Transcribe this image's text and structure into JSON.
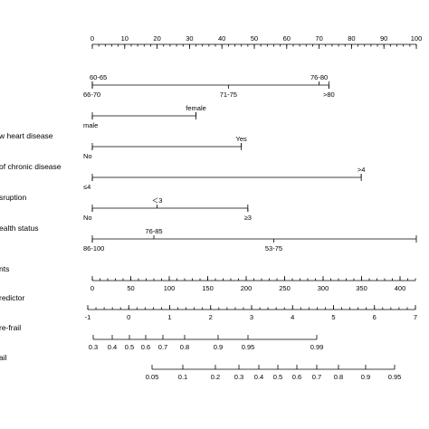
{
  "chart_data": {
    "type": "nomogram",
    "rows": [
      {
        "label": "",
        "kind": "scale",
        "domain": [
          0,
          100
        ],
        "major": [
          0,
          10,
          20,
          30,
          40,
          50,
          60,
          70,
          80,
          90,
          100
        ],
        "labels": [
          {
            "v": 0,
            "t": "0"
          },
          {
            "v": 10,
            "t": "10"
          },
          {
            "v": 20,
            "t": "20"
          },
          {
            "v": 30,
            "t": "30"
          },
          {
            "v": 40,
            "t": "40"
          },
          {
            "v": 50,
            "t": "50"
          },
          {
            "v": 60,
            "t": "60"
          },
          {
            "v": 70,
            "t": "70"
          },
          {
            "v": 80,
            "t": "80"
          },
          {
            "v": 90,
            "t": "90"
          },
          {
            "v": 100,
            "t": "100"
          }
        ],
        "minor_step": 2
      },
      {
        "label": "",
        "kind": "categorical",
        "range": [
          0,
          73
        ],
        "above": [
          {
            "v": 0,
            "t": "60-65"
          },
          {
            "v": 70,
            "t": "76-80"
          }
        ],
        "below": [
          {
            "v": 0,
            "t": "66-70"
          },
          {
            "v": 42,
            "t": "71-75"
          },
          {
            "v": 73,
            "t": ">80"
          }
        ]
      },
      {
        "label": "",
        "kind": "categorical",
        "range": [
          0,
          32
        ],
        "above": [
          {
            "v": 32,
            "t": "female"
          }
        ],
        "below": [
          {
            "v": 0,
            "t": "male"
          }
        ]
      },
      {
        "label": "w heart disease",
        "kind": "categorical",
        "range": [
          0,
          46
        ],
        "above": [
          {
            "v": 46,
            "t": "Yes"
          }
        ],
        "below": [
          {
            "v": 0,
            "t": "No"
          }
        ]
      },
      {
        "label": "of chronic disease",
        "kind": "categorical",
        "range": [
          0,
          83
        ],
        "above": [
          {
            "v": 83,
            "t": ">4"
          }
        ],
        "below": [
          {
            "v": 0,
            "t": "≤4"
          }
        ]
      },
      {
        "label": "sruption",
        "kind": "categorical",
        "range": [
          0,
          48
        ],
        "above": [
          {
            "v": 20,
            "t": "＜3"
          }
        ],
        "below": [
          {
            "v": 0,
            "t": "No"
          },
          {
            "v": 48,
            "t": "≥3"
          }
        ]
      },
      {
        "label": "ealth status",
        "kind": "categorical",
        "range": [
          0,
          100
        ],
        "above": [
          {
            "v": 19,
            "t": "76-85"
          }
        ],
        "below": [
          {
            "v": 0,
            "t": "86-100"
          },
          {
            "v": 56,
            "t": "53-75"
          }
        ]
      },
      {
        "label": "nts",
        "kind": "scale",
        "domain": [
          0,
          420
        ],
        "major": [
          0,
          50,
          100,
          150,
          200,
          250,
          300,
          350,
          400
        ],
        "labels": [
          {
            "v": 0,
            "t": "0"
          },
          {
            "v": 50,
            "t": "50"
          },
          {
            "v": 100,
            "t": "100"
          },
          {
            "v": 150,
            "t": "150"
          },
          {
            "v": 200,
            "t": "200"
          },
          {
            "v": 250,
            "t": "250"
          },
          {
            "v": 300,
            "t": "300"
          },
          {
            "v": 350,
            "t": "350"
          },
          {
            "v": 400,
            "t": "400"
          }
        ],
        "minor_step": 10,
        "end_tick": 420
      },
      {
        "label": "redictor",
        "kind": "scale",
        "domain": [
          -1,
          7
        ],
        "major": [
          -1,
          0,
          1,
          2,
          3,
          4,
          5,
          6,
          7
        ],
        "labels": [
          {
            "v": -1,
            "t": "-1"
          },
          {
            "v": 0,
            "t": "0"
          },
          {
            "v": 1,
            "t": "1"
          },
          {
            "v": 2,
            "t": "2"
          },
          {
            "v": 3,
            "t": "3"
          },
          {
            "v": 4,
            "t": "4"
          },
          {
            "v": 5,
            "t": "5"
          },
          {
            "v": 6,
            "t": "6"
          },
          {
            "v": 7,
            "t": "7"
          }
        ],
        "minor_step": 0.2
      },
      {
        "label": "re-frail",
        "kind": "scale",
        "domain": [
          0.3,
          0.99
        ],
        "major": [
          0.3,
          0.4,
          0.5,
          0.6,
          0.7,
          0.8,
          0.9,
          0.95,
          0.99
        ],
        "labels": [
          {
            "v": 0.3,
            "t": "0.3"
          },
          {
            "v": 0.4,
            "t": "0.4"
          },
          {
            "v": 0.5,
            "t": "0.5"
          },
          {
            "v": 0.6,
            "t": "0.6"
          },
          {
            "v": 0.7,
            "t": "0.7"
          },
          {
            "v": 0.8,
            "t": "0.8"
          },
          {
            "v": 0.9,
            "t": "0.9"
          },
          {
            "v": 0.95,
            "t": "0.95"
          },
          {
            "v": 0.99,
            "t": "0.99"
          }
        ]
      },
      {
        "label": "ail",
        "kind": "scale",
        "domain": [
          0.05,
          0.95
        ],
        "major": [
          0.05,
          0.1,
          0.2,
          0.3,
          0.4,
          0.5,
          0.6,
          0.7,
          0.8,
          0.9,
          0.95
        ],
        "labels": [
          {
            "v": 0.05,
            "t": "0.05"
          },
          {
            "v": 0.1,
            "t": "0.1"
          },
          {
            "v": 0.2,
            "t": "0.2"
          },
          {
            "v": 0.3,
            "t": "0.3"
          },
          {
            "v": 0.4,
            "t": "0.4"
          },
          {
            "v": 0.5,
            "t": "0.5"
          },
          {
            "v": 0.6,
            "t": "0.6"
          },
          {
            "v": 0.7,
            "t": "0.7"
          },
          {
            "v": 0.8,
            "t": "0.8"
          },
          {
            "v": 0.9,
            "t": "0.9"
          },
          {
            "v": 0.95,
            "t": "0.95"
          }
        ]
      }
    ]
  }
}
